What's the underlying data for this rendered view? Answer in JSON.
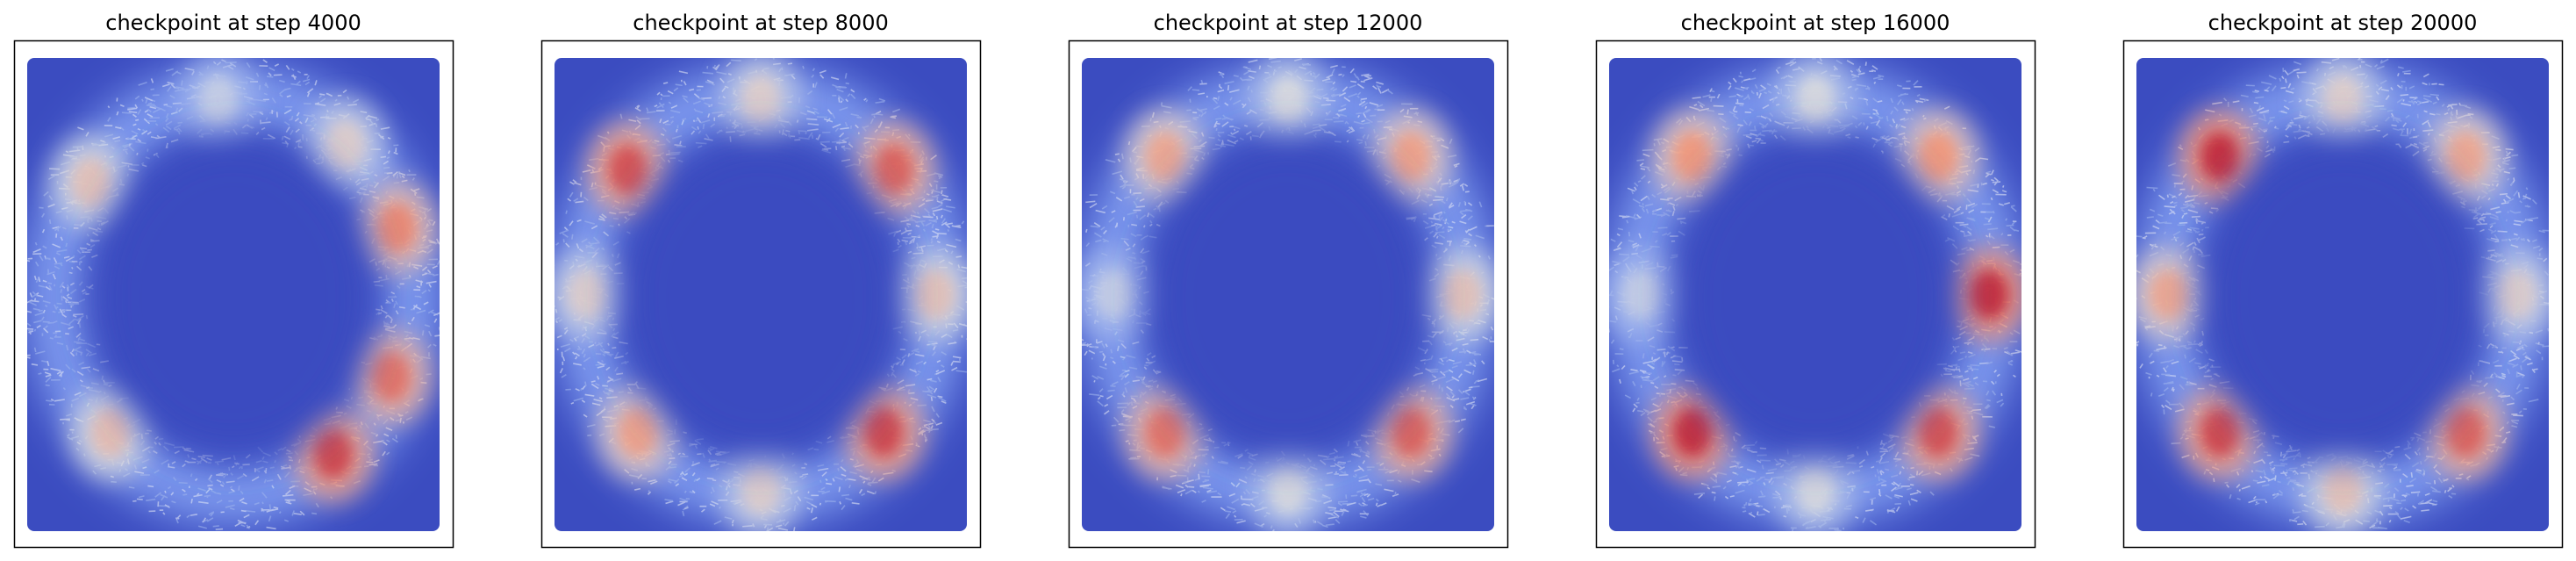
{
  "chart_data": [
    {
      "type": "heatmap",
      "title": "checkpoint at step 4000",
      "colormap": "coolwarm",
      "axes_visible": false,
      "ring_hotspots": [
        {
          "angle": 20,
          "value": 0.78
        },
        {
          "angle": 50,
          "value": 0.55
        },
        {
          "angle": 95,
          "value": 0.45
        },
        {
          "angle": 145,
          "value": 0.6
        },
        {
          "angle": 225,
          "value": 0.62
        },
        {
          "angle": 305,
          "value": 0.9
        },
        {
          "angle": 335,
          "value": 0.82
        }
      ]
    },
    {
      "type": "heatmap",
      "title": "checkpoint at step 8000",
      "colormap": "coolwarm",
      "axes_visible": false,
      "ring_hotspots": [
        {
          "angle": 40,
          "value": 0.85
        },
        {
          "angle": 90,
          "value": 0.55
        },
        {
          "angle": 140,
          "value": 0.88
        },
        {
          "angle": 180,
          "value": 0.55
        },
        {
          "angle": 225,
          "value": 0.72
        },
        {
          "angle": 270,
          "value": 0.55
        },
        {
          "angle": 315,
          "value": 0.9
        },
        {
          "angle": 0,
          "value": 0.6
        }
      ]
    },
    {
      "type": "heatmap",
      "title": "checkpoint at step 12000",
      "colormap": "coolwarm",
      "axes_visible": false,
      "ring_hotspots": [
        {
          "angle": 45,
          "value": 0.72
        },
        {
          "angle": 90,
          "value": 0.5
        },
        {
          "angle": 135,
          "value": 0.7
        },
        {
          "angle": 180,
          "value": 0.45
        },
        {
          "angle": 225,
          "value": 0.82
        },
        {
          "angle": 270,
          "value": 0.5
        },
        {
          "angle": 315,
          "value": 0.85
        },
        {
          "angle": 0,
          "value": 0.6
        }
      ]
    },
    {
      "type": "heatmap",
      "title": "checkpoint at step 16000",
      "colormap": "coolwarm",
      "axes_visible": false,
      "ring_hotspots": [
        {
          "angle": 45,
          "value": 0.75
        },
        {
          "angle": 90,
          "value": 0.5
        },
        {
          "angle": 135,
          "value": 0.75
        },
        {
          "angle": 180,
          "value": 0.45
        },
        {
          "angle": 225,
          "value": 0.95
        },
        {
          "angle": 270,
          "value": 0.5
        },
        {
          "angle": 315,
          "value": 0.88
        },
        {
          "angle": 0,
          "value": 0.95
        }
      ]
    },
    {
      "type": "heatmap",
      "title": "checkpoint at step 20000",
      "colormap": "coolwarm",
      "axes_visible": false,
      "ring_hotspots": [
        {
          "angle": 45,
          "value": 0.7
        },
        {
          "angle": 90,
          "value": 0.55
        },
        {
          "angle": 135,
          "value": 0.95
        },
        {
          "angle": 180,
          "value": 0.7
        },
        {
          "angle": 225,
          "value": 0.9
        },
        {
          "angle": 270,
          "value": 0.6
        },
        {
          "angle": 315,
          "value": 0.85
        },
        {
          "angle": 0,
          "value": 0.55
        }
      ]
    }
  ]
}
